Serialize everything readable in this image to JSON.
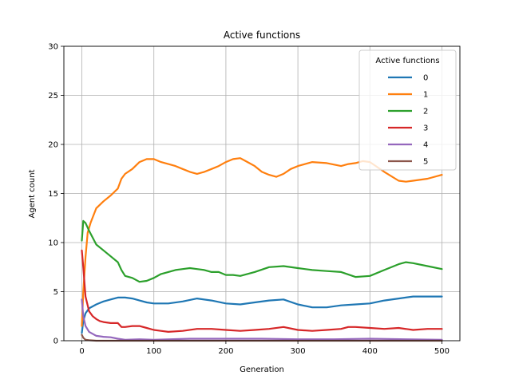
{
  "chart_data": {
    "type": "line",
    "title": "Active functions",
    "xlabel": "Generation",
    "ylabel": "Agent count",
    "xlim": [
      -25,
      525
    ],
    "ylim": [
      0,
      30
    ],
    "xticks": [
      0,
      100,
      200,
      300,
      400,
      500
    ],
    "yticks": [
      0,
      5,
      10,
      15,
      20,
      25,
      30
    ],
    "grid": true,
    "legend": {
      "title": "Active functions",
      "placement": "top-right"
    },
    "series": [
      {
        "name": "0",
        "color": "#1f77b4",
        "x": [
          0,
          2,
          5,
          10,
          20,
          30,
          40,
          50,
          60,
          70,
          80,
          90,
          100,
          120,
          140,
          160,
          180,
          200,
          220,
          240,
          260,
          280,
          300,
          320,
          340,
          360,
          380,
          400,
          420,
          440,
          460,
          480,
          500
        ],
        "y": [
          0.8,
          2.0,
          2.8,
          3.3,
          3.7,
          4.0,
          4.2,
          4.4,
          4.4,
          4.3,
          4.1,
          3.9,
          3.8,
          3.8,
          4.0,
          4.3,
          4.1,
          3.8,
          3.7,
          3.9,
          4.1,
          4.2,
          3.7,
          3.4,
          3.4,
          3.6,
          3.7,
          3.8,
          4.1,
          4.3,
          4.5,
          4.5,
          4.5
        ]
      },
      {
        "name": "1",
        "color": "#ff7f0e",
        "x": [
          0,
          2,
          5,
          8,
          12,
          20,
          30,
          40,
          50,
          55,
          60,
          70,
          80,
          90,
          100,
          110,
          120,
          130,
          140,
          150,
          160,
          170,
          180,
          190,
          200,
          210,
          220,
          230,
          240,
          250,
          260,
          270,
          280,
          290,
          300,
          310,
          320,
          340,
          360,
          370,
          380,
          390,
          400,
          420,
          440,
          450,
          460,
          480,
          500
        ],
        "y": [
          1.5,
          5.0,
          8.5,
          11.0,
          12.0,
          13.5,
          14.2,
          14.8,
          15.5,
          16.5,
          17.0,
          17.5,
          18.2,
          18.5,
          18.5,
          18.2,
          18.0,
          17.8,
          17.5,
          17.2,
          17.0,
          17.2,
          17.5,
          17.8,
          18.2,
          18.5,
          18.6,
          18.2,
          17.8,
          17.2,
          16.9,
          16.7,
          17.0,
          17.5,
          17.8,
          18.0,
          18.2,
          18.1,
          17.8,
          18.0,
          18.1,
          18.3,
          18.2,
          17.2,
          16.3,
          16.2,
          16.3,
          16.5,
          16.9
        ]
      },
      {
        "name": "2",
        "color": "#2ca02c",
        "x": [
          0,
          2,
          5,
          10,
          15,
          20,
          30,
          40,
          50,
          55,
          60,
          70,
          80,
          90,
          100,
          110,
          120,
          130,
          140,
          150,
          160,
          170,
          180,
          190,
          200,
          210,
          220,
          240,
          260,
          280,
          300,
          320,
          340,
          360,
          380,
          400,
          420,
          440,
          450,
          460,
          480,
          500
        ],
        "y": [
          10.2,
          12.2,
          12.0,
          11.2,
          10.5,
          9.8,
          9.2,
          8.6,
          8.0,
          7.2,
          6.6,
          6.4,
          6.0,
          6.1,
          6.4,
          6.8,
          7.0,
          7.2,
          7.3,
          7.4,
          7.3,
          7.2,
          7.0,
          7.0,
          6.7,
          6.7,
          6.6,
          7.0,
          7.5,
          7.6,
          7.4,
          7.2,
          7.1,
          7.0,
          6.5,
          6.6,
          7.2,
          7.8,
          8.0,
          7.9,
          7.6,
          7.3
        ]
      },
      {
        "name": "3",
        "color": "#d62728",
        "x": [
          0,
          2,
          5,
          10,
          15,
          20,
          25,
          30,
          40,
          50,
          55,
          60,
          70,
          80,
          90,
          100,
          110,
          120,
          140,
          160,
          180,
          200,
          220,
          240,
          260,
          280,
          300,
          320,
          340,
          360,
          370,
          380,
          400,
          420,
          440,
          460,
          480,
          500
        ],
        "y": [
          9.2,
          7.5,
          4.5,
          3.0,
          2.5,
          2.2,
          2.0,
          1.9,
          1.8,
          1.8,
          1.4,
          1.4,
          1.5,
          1.5,
          1.3,
          1.1,
          1.0,
          0.9,
          1.0,
          1.2,
          1.2,
          1.1,
          1.0,
          1.1,
          1.2,
          1.4,
          1.1,
          1.0,
          1.1,
          1.2,
          1.4,
          1.4,
          1.3,
          1.2,
          1.3,
          1.1,
          1.2,
          1.2
        ]
      },
      {
        "name": "4",
        "color": "#9467bd",
        "x": [
          0,
          2,
          5,
          10,
          15,
          20,
          30,
          40,
          50,
          60,
          80,
          100,
          150,
          200,
          250,
          300,
          350,
          400,
          450,
          500
        ],
        "y": [
          4.2,
          2.5,
          1.5,
          0.9,
          0.7,
          0.5,
          0.4,
          0.35,
          0.2,
          0.1,
          0.15,
          0.1,
          0.2,
          0.2,
          0.2,
          0.15,
          0.15,
          0.2,
          0.15,
          0.1
        ]
      },
      {
        "name": "5",
        "color": "#8c564b",
        "x": [
          0,
          2,
          5,
          10,
          20,
          500
        ],
        "y": [
          0.6,
          0.3,
          0.1,
          0.05,
          0.0,
          0.0
        ]
      }
    ]
  }
}
